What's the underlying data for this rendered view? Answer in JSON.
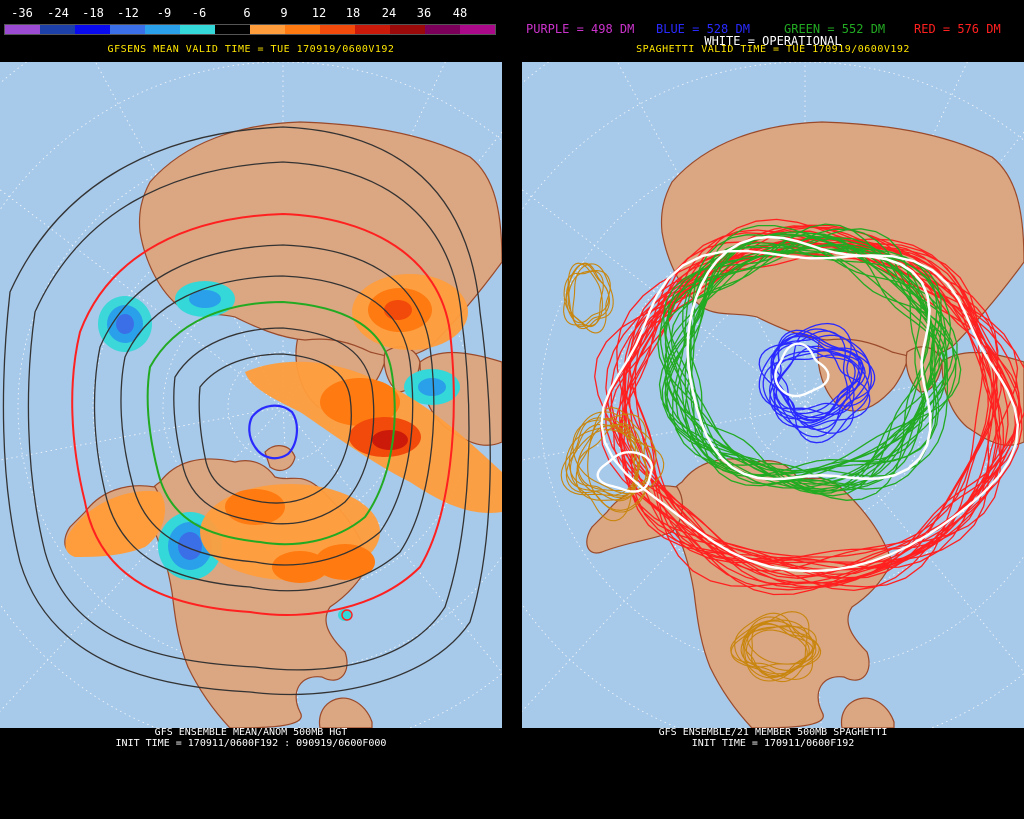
{
  "left": {
    "colorbar": {
      "labels": [
        "-36",
        "-24",
        "-18",
        "-12",
        "-9",
        "-6",
        "6",
        "9",
        "12",
        "18",
        "24",
        "36",
        "48"
      ],
      "colors": [
        "#9a4bd2",
        "#1c3fa8",
        "#0a0aee",
        "#3a6fe8",
        "#2aa0ea",
        "#35d8d8",
        "#000000",
        "#ff9d3c",
        "#ff7a10",
        "#f24a0a",
        "#cc1a0a",
        "#9a0a0a",
        "#7a005a",
        "#aa0a8a"
      ]
    },
    "title": "GFSENS MEAN VALID TIME = TUE 170919/0600V192",
    "footer": {
      "line1": "GFS ENSEMBLE MEAN/ANOM 500MB HGT",
      "line2": "INIT TIME = 170911/0600F192 : 090919/0600F000"
    }
  },
  "right": {
    "legend": {
      "purple": "PURPLE = 498 DM",
      "blue": "BLUE = 528 DM",
      "green": "GREEN = 552 DM",
      "red": "RED = 576 DM",
      "white": "WHITE = OPERATIONAL"
    },
    "title": "SPAGHETTI VALID TIME = TUE 170919/0600V192",
    "footer": {
      "line1": "GFS ENSEMBLE/21 MEMBER 500MB SPAGHETTI",
      "line2": "INIT TIME = 170911/0600F192"
    }
  },
  "colors": {
    "ocean": "#a7c9ea",
    "land": "#dba682",
    "coast": "#9a4a2a",
    "title_text": "#ffe600",
    "purple": "#cc33cc",
    "blue": "#2a2aff",
    "green": "#22aa22",
    "red": "#ff2020",
    "white": "#ffffff",
    "gold": "#c8860e"
  }
}
